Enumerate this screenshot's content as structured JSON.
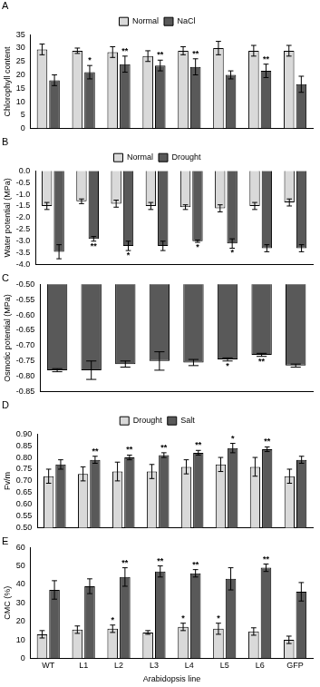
{
  "chart_data": [
    {
      "type": "bar",
      "title": "A",
      "y_label": "Chlorophyll content",
      "categories": [
        "WT",
        "L1",
        "L2",
        "L3",
        "L4",
        "L5",
        "L6",
        "GFP"
      ],
      "series": [
        {
          "name": "Normal",
          "color": "#d9d9d9",
          "values": [
            29.5,
            29,
            28.5,
            27,
            29,
            30,
            29,
            29
          ],
          "errors": [
            2,
            1,
            2,
            2,
            1.5,
            2.5,
            2,
            2
          ]
        },
        {
          "name": "NaCl",
          "color": "#595959",
          "values": [
            18,
            21,
            24,
            23.5,
            23,
            20,
            21.5,
            16.5
          ],
          "errors": [
            2,
            2.5,
            3,
            2,
            3,
            1.5,
            2.5,
            3
          ],
          "significance": [
            null,
            "*",
            "**",
            "**",
            "**",
            null,
            "**",
            null
          ]
        }
      ],
      "ylim": [
        0,
        35
      ],
      "yticks": [
        0,
        5,
        10,
        15,
        20,
        25,
        30,
        35
      ],
      "legend": "top",
      "grid": false,
      "tick_labels": "y"
    },
    {
      "type": "bar",
      "title": "B",
      "y_label": "Water potential (MPa)",
      "categories": [
        "WT",
        "L1",
        "L2",
        "L3",
        "L4",
        "L5",
        "L6",
        "GFP"
      ],
      "series": [
        {
          "name": "Normal",
          "color": "#d9d9d9",
          "values": [
            -1.5,
            -1.3,
            -1.4,
            -1.5,
            -1.55,
            -1.6,
            -1.5,
            -1.35
          ],
          "errors": [
            0.15,
            0.1,
            0.15,
            0.15,
            0.1,
            0.15,
            0.15,
            0.15
          ]
        },
        {
          "name": "Drought",
          "color": "#595959",
          "values": [
            -3.45,
            -2.9,
            -3.2,
            -3.2,
            -3.0,
            -3.1,
            -3.3,
            -3.3
          ],
          "errors": [
            0.3,
            0.1,
            0.2,
            0.2,
            0.05,
            0.2,
            0.15,
            0.15
          ],
          "significance": [
            null,
            "**",
            "*",
            null,
            "*",
            "*",
            null,
            null
          ]
        }
      ],
      "ylim": [
        -4.0,
        0.0
      ],
      "yticks": [
        {
          "value": -4.0,
          "label": "-4.0"
        },
        {
          "value": -3.5,
          "label": "-3.5"
        },
        {
          "value": -3.0,
          "label": "-3.0"
        },
        {
          "value": -2.5,
          "label": "-2.5"
        },
        {
          "value": -2.0,
          "label": "-2.0"
        },
        {
          "value": -1.5,
          "label": "-1.5"
        },
        {
          "value": -1.0,
          "label": "-1.0"
        },
        {
          "value": -0.5,
          "label": "-0.5"
        },
        {
          "value": 0.0,
          "label": "0.0"
        }
      ],
      "legend": "top",
      "grid": false,
      "tick_labels": "y"
    },
    {
      "type": "bar",
      "title": "C",
      "y_label": "Osmotic potential (MPa)",
      "categories": [
        "WT",
        "L1",
        "L2",
        "L3",
        "L4",
        "L5",
        "L6",
        "GFP"
      ],
      "color": "#595959",
      "values": [
        -0.78,
        -0.78,
        -0.76,
        -0.75,
        -0.755,
        -0.745,
        -0.73,
        -0.765
      ],
      "errors": [
        0.005,
        0.03,
        0.01,
        0.03,
        0.01,
        0.005,
        0.005,
        0.005
      ],
      "significance": [
        null,
        null,
        null,
        null,
        null,
        "*",
        "**",
        null
      ],
      "ylim": [
        -0.85,
        -0.5
      ],
      "yticks": [
        {
          "value": -0.85,
          "label": "-0.85"
        },
        {
          "value": -0.8,
          "label": "-0.80"
        },
        {
          "value": -0.75,
          "label": "-0.75"
        },
        {
          "value": -0.7,
          "label": "-0.70"
        },
        {
          "value": -0.65,
          "label": "-0.65"
        },
        {
          "value": -0.6,
          "label": "-0.60"
        },
        {
          "value": -0.55,
          "label": "-0.55"
        },
        {
          "value": -0.5,
          "label": "-0.50"
        }
      ],
      "grid": false,
      "tick_labels": "y"
    },
    {
      "type": "bar",
      "title": "D",
      "y_label": "Fv/m",
      "categories": [
        "WT",
        "L1",
        "L2",
        "L3",
        "L4",
        "L5",
        "L6",
        "GFP"
      ],
      "series": [
        {
          "name": "Drought",
          "color": "#d9d9d9",
          "values": [
            0.72,
            0.73,
            0.74,
            0.74,
            0.76,
            0.77,
            0.76,
            0.72
          ],
          "errors": [
            0.03,
            0.03,
            0.04,
            0.03,
            0.03,
            0.03,
            0.04,
            0.03
          ]
        },
        {
          "name": "Salt",
          "color": "#595959",
          "values": [
            0.77,
            0.79,
            0.8,
            0.81,
            0.82,
            0.84,
            0.835,
            0.79
          ],
          "errors": [
            0.02,
            0.015,
            0.01,
            0.01,
            0.01,
            0.02,
            0.01,
            0.015
          ],
          "significance": [
            null,
            "**",
            "**",
            "**",
            "**",
            "*",
            "**",
            null
          ]
        }
      ],
      "ylim": [
        0.5,
        0.9
      ],
      "yticks": [
        {
          "value": 0.5,
          "label": "0.50"
        },
        {
          "value": 0.55,
          "label": "0.55"
        },
        {
          "value": 0.6,
          "label": "0.60"
        },
        {
          "value": 0.65,
          "label": "0.65"
        },
        {
          "value": 0.7,
          "label": "0.70"
        },
        {
          "value": 0.75,
          "label": "0.75"
        },
        {
          "value": 0.8,
          "label": "0.80"
        },
        {
          "value": 0.85,
          "label": "0.85"
        },
        {
          "value": 0.9,
          "label": "0.90"
        }
      ],
      "legend": "top",
      "grid": false,
      "tick_labels": "y"
    },
    {
      "type": "bar",
      "title": "E",
      "y_label": "CMC (%)",
      "x_label": "Arabidopsis line",
      "categories": [
        "WT",
        "L1",
        "L2",
        "L3",
        "L4",
        "L5",
        "L6",
        "GFP"
      ],
      "series": [
        {
          "color": "#d9d9d9",
          "values": [
            13,
            15.5,
            16,
            14,
            17,
            16,
            14.5,
            10
          ],
          "errors": [
            2,
            2,
            2,
            1,
            2,
            3,
            2,
            2
          ],
          "significance": [
            null,
            null,
            "*",
            null,
            "*",
            "*",
            null,
            null
          ]
        },
        {
          "color": "#595959",
          "values": [
            37,
            39,
            44,
            47,
            46,
            43,
            49,
            36
          ],
          "errors": [
            5,
            4,
            5,
            3,
            2,
            6,
            2,
            5
          ],
          "significance": [
            null,
            null,
            "**",
            "**",
            "**",
            null,
            "**",
            null
          ]
        }
      ],
      "ylim": [
        0,
        60
      ],
      "yticks": [
        0,
        10,
        20,
        30,
        40,
        50,
        60
      ],
      "grid": false
    }
  ]
}
